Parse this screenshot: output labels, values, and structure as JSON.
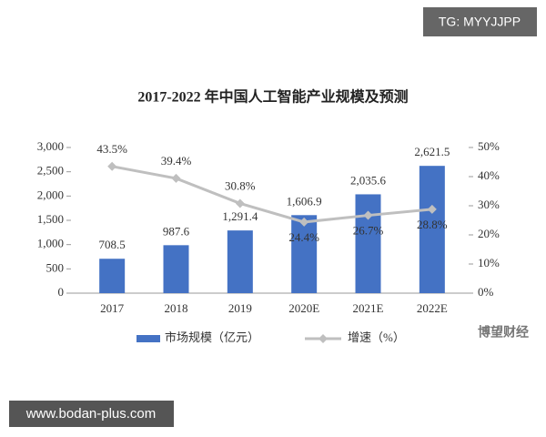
{
  "chart_data": {
    "type": "bar-line",
    "title": "2017-2022 年中国人工智能产业规模及预测",
    "categories": [
      "2017",
      "2018",
      "2019",
      "2020E",
      "2021E",
      "2022E"
    ],
    "series": [
      {
        "name": "市场规模（亿元）",
        "type": "bar",
        "color": "#4472c4",
        "values": [
          708.5,
          987.6,
          1291.4,
          1606.9,
          2035.6,
          2621.5
        ],
        "value_labels": [
          "708.5",
          "987.6",
          "1,291.4",
          "1,606.9",
          "2,035.6",
          "2,621.5"
        ]
      },
      {
        "name": "增速（%）",
        "type": "line",
        "axis": "y2",
        "color": "#bfbfbf",
        "values": [
          43.5,
          39.4,
          30.8,
          24.4,
          26.7,
          28.8
        ],
        "value_labels": [
          "43.5%",
          "39.4%",
          "30.8%",
          "24.4%",
          "26.7%",
          "28.8%"
        ]
      }
    ],
    "ylim": [
      0,
      3000
    ],
    "yticks": [
      0,
      500,
      {
        "value": 1000,
        "label": "1,000"
      },
      {
        "value": 1500,
        "label": "1,500"
      },
      {
        "value": 2000,
        "label": "2,000"
      },
      {
        "value": 2500,
        "label": "2,500"
      },
      {
        "value": 3000,
        "label": "3,000"
      }
    ],
    "y2lim": [
      0,
      50
    ],
    "y2ticks": [
      {
        "value": 0,
        "label": "0%"
      },
      {
        "value": 10,
        "label": "10%"
      },
      {
        "value": 20,
        "label": "20%"
      },
      {
        "value": 30,
        "label": "30%"
      },
      {
        "value": 40,
        "label": "40%"
      },
      {
        "value": 50,
        "label": "50%"
      }
    ],
    "legend": "bottom"
  },
  "overlays": {
    "top_tag": "TG: MYYJJPP",
    "site": "www.bodan-plus.com",
    "source": "博望财经"
  }
}
